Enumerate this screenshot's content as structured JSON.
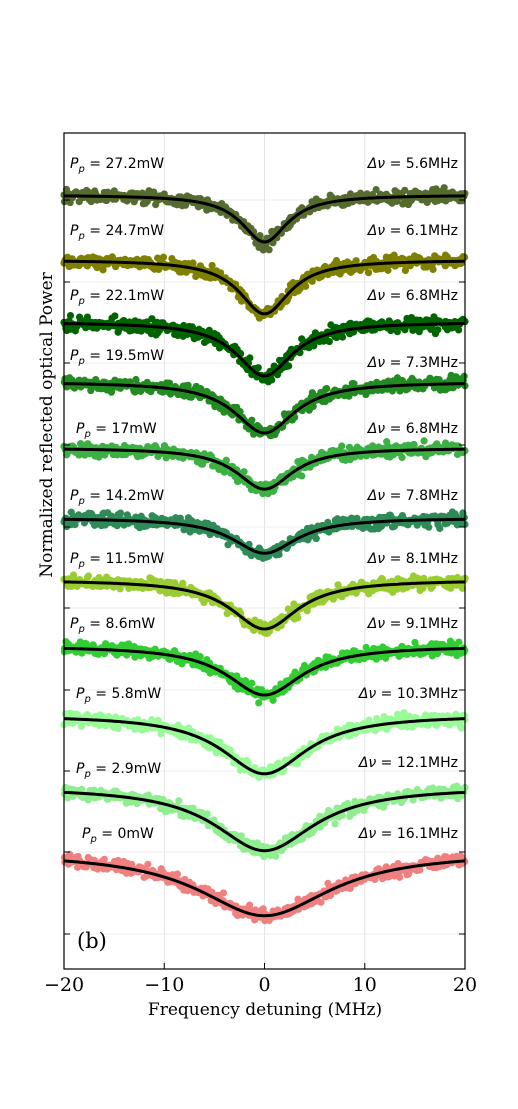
{
  "chart_data": {
    "type": "scatter",
    "panel_label": "(b)",
    "xlabel": "Frequency detuning (MHz)",
    "ylabel": "Normalized reflected optical Power",
    "xlim": [
      -20,
      20
    ],
    "xticks": [
      -20,
      -10,
      0,
      10,
      20
    ],
    "xtick_labels": [
      "−20",
      "−10",
      "0",
      "10",
      "20"
    ],
    "grid": true,
    "fit_line_color": "#000000",
    "series": [
      {
        "pump_label": "P",
        "pump_sub": "p",
        "pump_value": " = 27.2mW",
        "width_label": "Δν",
        "width_value": " = 5.6MHz",
        "linewidth_mhz": 5.6,
        "dip_depth": 0.48,
        "color": "#556b2f"
      },
      {
        "pump_label": "P",
        "pump_sub": "p",
        "pump_value": " = 24.7mW",
        "width_label": "Δν",
        "width_value": " = 6.1MHz",
        "linewidth_mhz": 6.1,
        "dip_depth": 0.55,
        "color": "#808000"
      },
      {
        "pump_label": "P",
        "pump_sub": "p",
        "pump_value": " = 22.1mW",
        "width_label": "Δν",
        "width_value": " = 6.8MHz",
        "linewidth_mhz": 6.8,
        "dip_depth": 0.55,
        "color": "#006400"
      },
      {
        "pump_label": "P",
        "pump_sub": "p",
        "pump_value": " = 19.5mW",
        "width_label": "Δν",
        "width_value": " = 7.3MHz",
        "linewidth_mhz": 7.3,
        "dip_depth": 0.52,
        "color": "#228b22"
      },
      {
        "pump_label": "P",
        "pump_sub": "p",
        "pump_value": " = 17mW",
        "width_label": "Δν",
        "width_value": " = 6.8MHz",
        "linewidth_mhz": 6.8,
        "dip_depth": 0.42,
        "color": "#3cb043"
      },
      {
        "pump_label": "P",
        "pump_sub": "p",
        "pump_value": " = 14.2mW",
        "width_label": "Δν",
        "width_value": " = 7.8MHz",
        "linewidth_mhz": 7.8,
        "dip_depth": 0.36,
        "color": "#2e8b57"
      },
      {
        "pump_label": "P",
        "pump_sub": "p",
        "pump_value": " = 11.5mW",
        "width_label": "Δν",
        "width_value": " = 8.1MHz",
        "linewidth_mhz": 8.1,
        "dip_depth": 0.5,
        "color": "#9acd32"
      },
      {
        "pump_label": "P",
        "pump_sub": "p",
        "pump_value": " = 8.6mW",
        "width_label": "Δν",
        "width_value": " = 9.1MHz",
        "linewidth_mhz": 9.1,
        "dip_depth": 0.5,
        "color": "#32cd32"
      },
      {
        "pump_label": "P",
        "pump_sub": "p",
        "pump_value": " = 5.8mW",
        "width_label": "Δν",
        "width_value": " = 10.3MHz",
        "linewidth_mhz": 10.3,
        "dip_depth": 0.6,
        "color": "#98fb98"
      },
      {
        "pump_label": "P",
        "pump_sub": "p",
        "pump_value": " = 2.9mW",
        "width_label": "Δν",
        "width_value": " = 12.1MHz",
        "linewidth_mhz": 12.1,
        "dip_depth": 0.65,
        "color": "#90ee90"
      },
      {
        "pump_label": "P",
        "pump_sub": "p",
        "pump_value": " = 0mW",
        "width_label": "Δν",
        "width_value": " = 16.1MHz",
        "linewidth_mhz": 16.1,
        "dip_depth": 0.65,
        "color": "#f08080"
      }
    ]
  }
}
